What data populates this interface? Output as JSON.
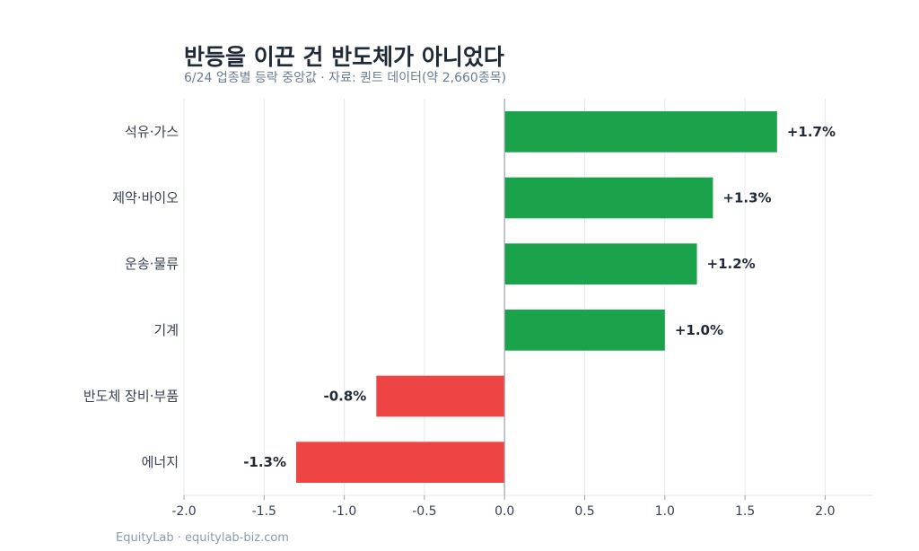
{
  "title": "반등을 이끈 건 반도체가 아니었다",
  "subtitle": "6/24 업종별 등락 중앙값 · 자료: 퀀트 데이터(약 2,660종목)",
  "footer": "EquityLab · equitylab-biz.com",
  "colors": {
    "positive": "#1aa34a",
    "negative": "#ef4444",
    "grid": "#e5e7eb",
    "axis": "#9ca3af"
  },
  "chart_data": {
    "type": "bar",
    "orientation": "horizontal",
    "title": "반등을 이끈 건 반도체가 아니었다",
    "subtitle": "6/24 업종별 등락 중앙값 · 자료: 퀀트 데이터(약 2,660종목)",
    "categories": [
      "석유·가스",
      "제약·바이오",
      "운송·물류",
      "기계",
      "반도체 장비·부품",
      "에너지"
    ],
    "values": [
      1.7,
      1.3,
      1.2,
      1.0,
      -0.8,
      -1.3
    ],
    "value_labels": [
      "+1.7%",
      "+1.3%",
      "+1.2%",
      "+1.0%",
      "-0.8%",
      "-1.3%"
    ],
    "xlim": [
      -2.0,
      2.3
    ],
    "xticks": [
      -2.0,
      -1.5,
      -1.0,
      -0.5,
      0.0,
      0.5,
      1.0,
      1.5,
      2.0
    ],
    "xtick_labels": [
      "-2.0",
      "-1.5",
      "-1.0",
      "-0.5",
      "0.0",
      "0.5",
      "1.0",
      "1.5",
      "2.0"
    ],
    "grid": "vertical",
    "legend": "none"
  }
}
